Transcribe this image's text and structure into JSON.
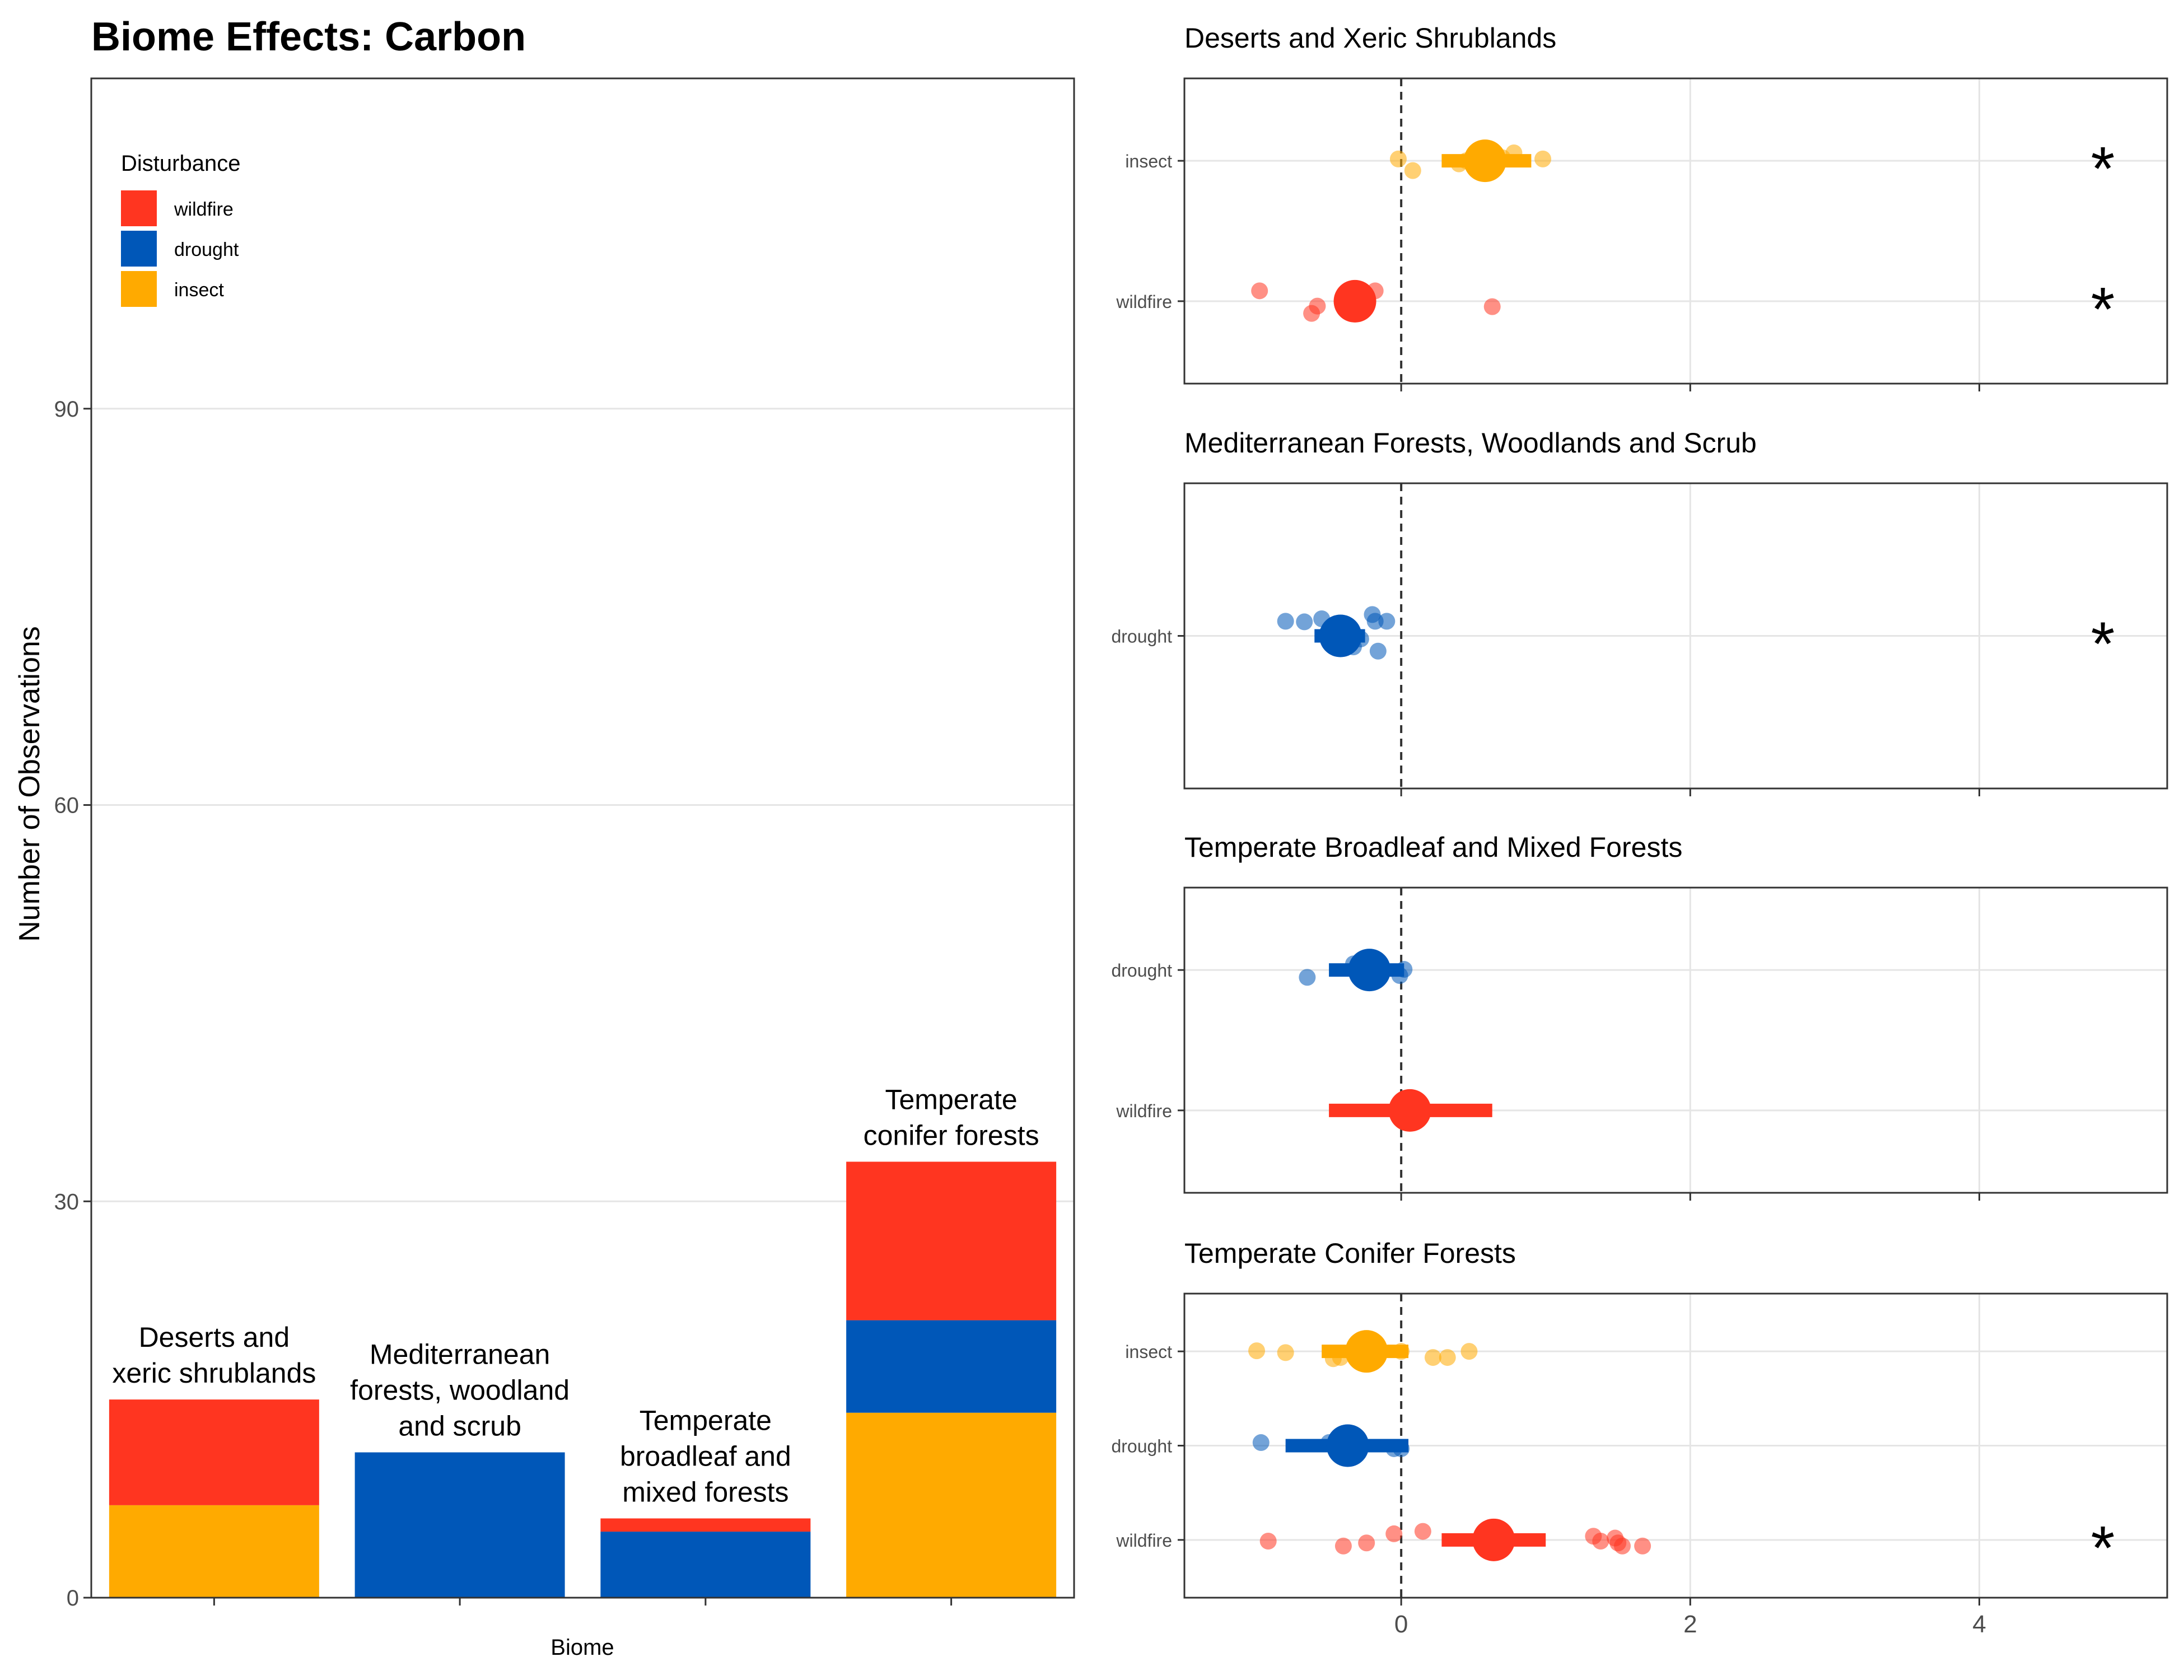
{
  "colors": {
    "wildfire": "#FF3520",
    "drought": "#0057B8",
    "insect": "#FFAA00",
    "grid": "#E5E5E5",
    "frame": "#333333",
    "text": "#000000",
    "tick_text": "#4D4D4D"
  },
  "chart_data": [
    {
      "type": "bar",
      "stacked": true,
      "title": "Biome Effects: Carbon",
      "xlabel": "Biome",
      "ylabel": "Number of Observations",
      "ylim": [
        0,
        115
      ],
      "yticks": [
        0,
        30,
        60,
        90
      ],
      "grid": true,
      "legend": {
        "title": "Disturbance",
        "position": "top-left",
        "items": [
          "wildfire",
          "drought",
          "insect"
        ]
      },
      "categories": [
        [
          "Deserts and",
          "xeric shrublands"
        ],
        [
          "Mediterranean",
          "forests, woodland",
          "and scrub"
        ],
        [
          "Temperate",
          "broadleaf and",
          "mixed forests"
        ],
        [
          "Temperate",
          "conifer forests"
        ]
      ],
      "series": [
        {
          "name": "insect",
          "values": [
            7,
            0,
            0,
            14
          ]
        },
        {
          "name": "drought",
          "values": [
            0,
            11,
            5,
            7
          ]
        },
        {
          "name": "wildfire",
          "values": [
            8,
            0,
            1,
            12
          ]
        }
      ]
    },
    {
      "type": "scatter",
      "title": "Deserts and Xeric Shrublands",
      "xlim": [
        -1.5,
        5.3
      ],
      "xticks": [
        0,
        2,
        4
      ],
      "show_tick_labels": false,
      "rows": [
        {
          "label": "insect",
          "series": "insect",
          "mean": 0.58,
          "ci": [
            0.28,
            0.9
          ],
          "significant": true,
          "points": [
            [
              -0.02,
              0.03
            ],
            [
              0.08,
              -0.16
            ],
            [
              0.4,
              -0.05
            ],
            [
              0.45,
              0.0
            ],
            [
              0.55,
              0.02
            ],
            [
              0.62,
              -0.02
            ],
            [
              0.7,
              0.05
            ],
            [
              0.78,
              0.13
            ],
            [
              0.98,
              0.03
            ]
          ]
        },
        {
          "label": "wildfire",
          "series": "wildfire",
          "mean": -0.32,
          "ci": [
            -0.36,
            -0.28
          ],
          "significant": true,
          "points": [
            [
              -0.98,
              0.17
            ],
            [
              -0.18,
              0.17
            ],
            [
              -0.58,
              -0.08
            ],
            [
              -0.62,
              -0.2
            ],
            [
              -0.25,
              -0.08
            ],
            [
              -0.4,
              0.05
            ],
            [
              0.63,
              -0.09
            ]
          ]
        }
      ]
    },
    {
      "type": "scatter",
      "title": "Mediterranean Forests, Woodlands and Scrub",
      "xlim": [
        -1.5,
        5.3
      ],
      "xticks": [
        0,
        2,
        4
      ],
      "show_tick_labels": false,
      "rows": [
        {
          "label": "drought",
          "series": "drought",
          "mean": -0.42,
          "ci": [
            -0.6,
            -0.25
          ],
          "significant": true,
          "points": [
            [
              -0.8,
              0.24
            ],
            [
              -0.67,
              0.23
            ],
            [
              -0.55,
              0.28
            ],
            [
              -0.47,
              0.12
            ],
            [
              -0.2,
              0.35
            ],
            [
              -0.18,
              0.24
            ],
            [
              -0.1,
              0.24
            ],
            [
              -0.28,
              -0.05
            ],
            [
              -0.45,
              -0.2
            ],
            [
              -0.33,
              -0.18
            ],
            [
              -0.16,
              -0.25
            ],
            [
              -0.52,
              0.02
            ]
          ]
        }
      ]
    },
    {
      "type": "scatter",
      "title": "Temperate Broadleaf and Mixed Forests",
      "xlim": [
        -1.5,
        5.3
      ],
      "xticks": [
        0,
        2,
        4
      ],
      "show_tick_labels": false,
      "rows": [
        {
          "label": "drought",
          "series": "drought",
          "mean": -0.22,
          "ci": [
            -0.5,
            0.02
          ],
          "significant": false,
          "points": [
            [
              -0.33,
              0.1
            ],
            [
              0.02,
              0.01
            ],
            [
              -0.01,
              -0.09
            ],
            [
              -0.65,
              -0.12
            ]
          ]
        },
        {
          "label": "wildfire",
          "series": "wildfire",
          "mean": 0.06,
          "ci": [
            -0.5,
            0.63
          ],
          "significant": false,
          "points": [
            [
              0.06,
              -0.05
            ]
          ]
        }
      ]
    },
    {
      "type": "scatter",
      "title": "Temperate Conifer Forests",
      "xlim": [
        -1.5,
        5.3
      ],
      "xticks": [
        0,
        2,
        4
      ],
      "show_tick_labels": true,
      "rows": [
        {
          "label": "insect",
          "series": "insect",
          "mean": -0.24,
          "ci": [
            -0.55,
            0.05
          ],
          "significant": false,
          "points": [
            [
              -1.0,
              0.01
            ],
            [
              -0.8,
              -0.02
            ],
            [
              -0.47,
              -0.12
            ],
            [
              -0.42,
              -0.1
            ],
            [
              -0.3,
              -0.05
            ],
            [
              0.0,
              0.0
            ],
            [
              0.22,
              -0.1
            ],
            [
              0.32,
              -0.1
            ],
            [
              0.47,
              0.0
            ]
          ]
        },
        {
          "label": "drought",
          "series": "drought",
          "mean": -0.37,
          "ci": [
            -0.8,
            0.05
          ],
          "significant": false,
          "points": [
            [
              -0.97,
              0.05
            ],
            [
              -0.5,
              0.05
            ],
            [
              -0.05,
              -0.05
            ],
            [
              0.0,
              -0.05
            ]
          ]
        },
        {
          "label": "wildfire",
          "series": "wildfire",
          "mean": 0.64,
          "ci": [
            0.28,
            1.0
          ],
          "significant": true,
          "points": [
            [
              -0.92,
              -0.02
            ],
            [
              -0.4,
              -0.1
            ],
            [
              -0.24,
              -0.05
            ],
            [
              -0.05,
              0.1
            ],
            [
              0.15,
              0.14
            ],
            [
              1.33,
              0.06
            ],
            [
              1.38,
              -0.02
            ],
            [
              1.48,
              0.03
            ],
            [
              1.5,
              -0.05
            ],
            [
              1.53,
              -0.1
            ],
            [
              1.67,
              -0.1
            ]
          ]
        }
      ]
    }
  ]
}
